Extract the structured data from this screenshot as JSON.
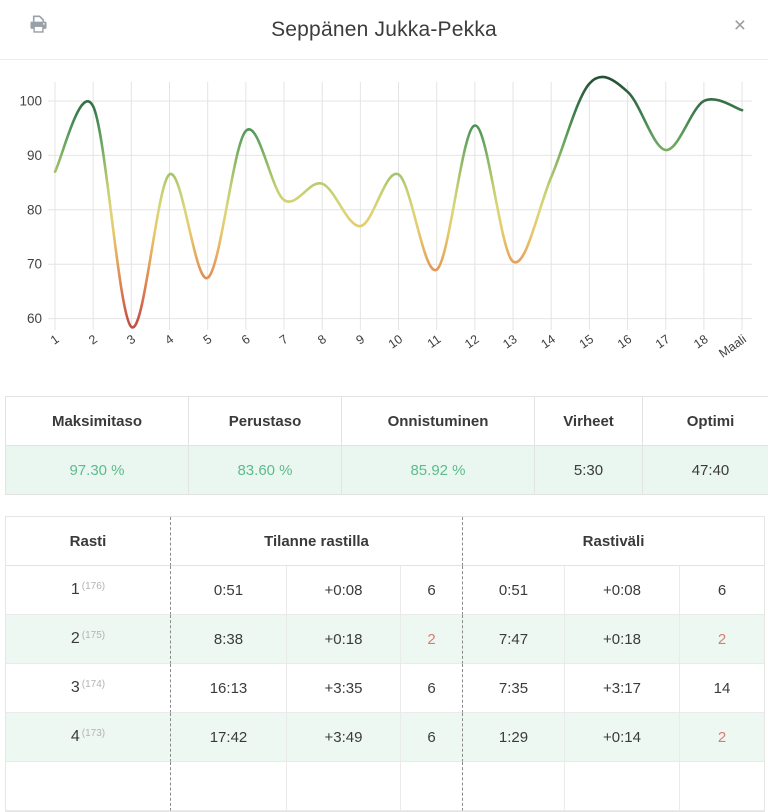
{
  "header": {
    "title": "Seppänen Jukka-Pekka",
    "close_label": "×"
  },
  "chart_data": {
    "type": "line",
    "title": "",
    "x_labels": [
      "1",
      "2",
      "3",
      "4",
      "5",
      "6",
      "7",
      "8",
      "9",
      "10",
      "11",
      "12",
      "13",
      "14",
      "15",
      "16",
      "17",
      "18",
      "Maali"
    ],
    "values": [
      87,
      99,
      58.5,
      86.5,
      67.5,
      94.5,
      81.8,
      84.8,
      77,
      86.5,
      69,
      95.5,
      70.5,
      86,
      103.2,
      101.7,
      91,
      100,
      98.3
    ],
    "y_ticks": [
      60,
      70,
      80,
      90,
      100
    ],
    "ylim": [
      57,
      104
    ],
    "grid": true,
    "legend": false,
    "xlabel": "",
    "ylabel": "",
    "color_scale": [
      {
        "value": 104,
        "color": "#265134"
      },
      {
        "value": 98,
        "color": "#3d7c4e"
      },
      {
        "value": 93,
        "color": "#62a35f"
      },
      {
        "value": 88,
        "color": "#97bd68"
      },
      {
        "value": 84,
        "color": "#c2cf72"
      },
      {
        "value": 80,
        "color": "#dcd577"
      },
      {
        "value": 76,
        "color": "#e7c96c"
      },
      {
        "value": 72,
        "color": "#e6ae60"
      },
      {
        "value": 68,
        "color": "#e19154"
      },
      {
        "value": 64,
        "color": "#d8734d"
      },
      {
        "value": 60,
        "color": "#c65648"
      },
      {
        "value": 57,
        "color": "#b54a44"
      }
    ]
  },
  "summary_table": {
    "columns": [
      {
        "label": "Maksimitaso",
        "value": "97.30 %",
        "green": true
      },
      {
        "label": "Perustaso",
        "value": "83.60 %",
        "green": true
      },
      {
        "label": "Onnistuminen",
        "value": "85.92 %",
        "green": true
      },
      {
        "label": "Virheet",
        "value": "5:30",
        "green": false
      },
      {
        "label": "Optimi",
        "value": "47:40",
        "green": false
      }
    ]
  },
  "detail_table": {
    "col_rasti": "Rasti",
    "col_tilanne": "Tilanne rastilla",
    "col_rastivali": "Rastiväli",
    "rows": [
      {
        "control": "1",
        "code": "(176)",
        "tilanne": [
          "0:51",
          "+0:08",
          "6"
        ],
        "tilanne_red": [
          false,
          false,
          false
        ],
        "rastivali": [
          "0:51",
          "+0:08",
          "6"
        ],
        "rastivali_red": [
          false,
          false,
          false
        ]
      },
      {
        "control": "2",
        "code": "(175)",
        "tilanne": [
          "8:38",
          "+0:18",
          "2"
        ],
        "tilanne_red": [
          false,
          false,
          true
        ],
        "rastivali": [
          "7:47",
          "+0:18",
          "2"
        ],
        "rastivali_red": [
          false,
          false,
          true
        ]
      },
      {
        "control": "3",
        "code": "(174)",
        "tilanne": [
          "16:13",
          "+3:35",
          "6"
        ],
        "tilanne_red": [
          false,
          false,
          false
        ],
        "rastivali": [
          "7:35",
          "+3:17",
          "14"
        ],
        "rastivali_red": [
          false,
          false,
          false
        ]
      },
      {
        "control": "4",
        "code": "(173)",
        "tilanne": [
          "17:42",
          "+3:49",
          "6"
        ],
        "tilanne_red": [
          false,
          false,
          false
        ],
        "rastivali": [
          "1:29",
          "+0:14",
          "2"
        ],
        "rastivali_red": [
          false,
          false,
          true
        ]
      },
      {
        "control": "",
        "code": "",
        "tilanne": [
          "",
          "",
          ""
        ],
        "tilanne_red": [
          false,
          false,
          false
        ],
        "rastivali": [
          "",
          "",
          ""
        ],
        "rastivali_red": [
          false,
          false,
          false
        ]
      }
    ]
  },
  "colors": {
    "accent_green_text": "#5dbb8c",
    "alert_red_text": "#d97b72",
    "mint_row_bg": "#eef8f3",
    "table_border": "#e3e3e3",
    "dashed_divider": "#8a8a8a",
    "grid_line": "#e4e4e4",
    "icon_gray": "#99a1a8"
  }
}
